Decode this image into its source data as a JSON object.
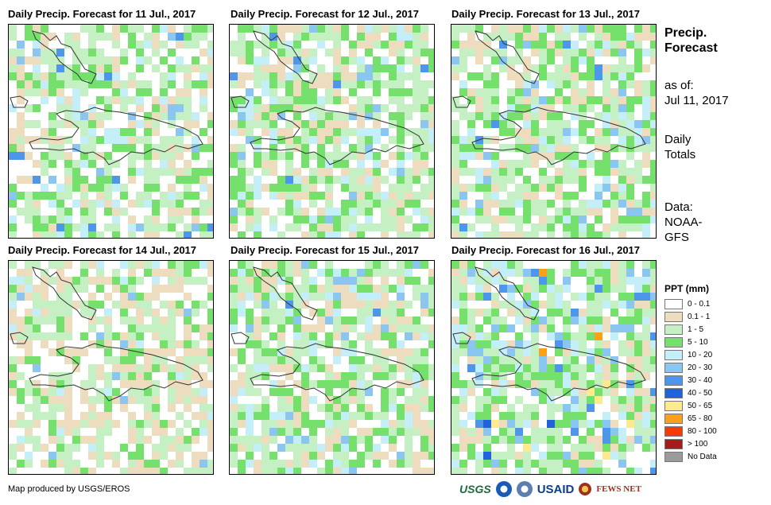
{
  "map": {
    "panels": [
      {
        "title": "Daily Precip. Forecast for 11 Jul., 2017",
        "pattern": "light"
      },
      {
        "title": "Daily Precip. Forecast for 12 Jul., 2017",
        "pattern": "moderate"
      },
      {
        "title": "Daily Precip. Forecast for 13 Jul., 2017",
        "pattern": "moderate"
      },
      {
        "title": "Daily Precip. Forecast for 14 Jul., 2017",
        "pattern": "dry"
      },
      {
        "title": "Daily Precip. Forecast for 15 Jul., 2017",
        "pattern": "moderate"
      },
      {
        "title": "Daily Precip. Forecast for 16 Jul., 2017",
        "pattern": "wet"
      }
    ],
    "region": "Hispaniola (Haiti / Dominican Republic)"
  },
  "info": {
    "heading_line1": "Precip.",
    "heading_line2": "Forecast",
    "asof_label": "as of:",
    "asof_date": "Jul 11, 2017",
    "totals_line1": "Daily",
    "totals_line2": "Totals",
    "data_label": "Data:",
    "data_source_line1": "NOAA-",
    "data_source_line2": "GFS"
  },
  "legend": {
    "title": "PPT (mm)",
    "items": [
      {
        "label": "0 - 0.1",
        "color": "#ffffff"
      },
      {
        "label": "0.1 - 1",
        "color": "#eedcbe"
      },
      {
        "label": "1 - 5",
        "color": "#c5f0c3"
      },
      {
        "label": "5 - 10",
        "color": "#75e06b"
      },
      {
        "label": "10 - 20",
        "color": "#c4eef8"
      },
      {
        "label": "20 - 30",
        "color": "#8ac6f0"
      },
      {
        "label": "30 - 40",
        "color": "#4d96ea"
      },
      {
        "label": "40 - 50",
        "color": "#1f62dc"
      },
      {
        "label": "50 - 65",
        "color": "#fde98e"
      },
      {
        "label": "65 - 80",
        "color": "#f9a11b"
      },
      {
        "label": "80 - 100",
        "color": "#f53a0c"
      },
      {
        "label": "> 100",
        "color": "#a61c1c"
      },
      {
        "label": "No Data",
        "color": "#9b9b9b"
      }
    ]
  },
  "footer": {
    "credit": "Map produced by USGS/EROS",
    "logos": [
      "USGS",
      "NOAA",
      "USAID",
      "FEWS NET"
    ]
  }
}
